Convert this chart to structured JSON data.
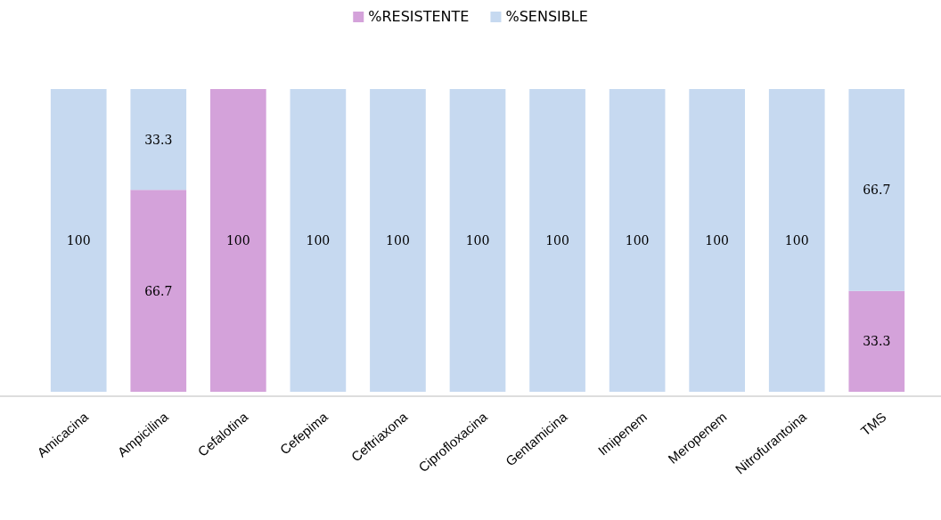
{
  "chart_data": {
    "type": "bar",
    "stacked": true,
    "legend": "top",
    "categories": [
      "Amicacina",
      "Ampicilina",
      "Cefalotina",
      "Cefepima",
      "Ceftriaxona",
      "Ciprofloxacina",
      "Gentamicina",
      "Imipenem",
      "Meropenem",
      "Nitrofurantoina",
      "TMS"
    ],
    "series": [
      {
        "name": "%RESISTENTE",
        "color": "#d4a2da",
        "values": [
          0,
          66.7,
          100,
          0,
          0,
          0,
          0,
          0,
          0,
          0,
          33.3
        ],
        "value_labels": [
          null,
          "66.7",
          "100",
          null,
          null,
          null,
          null,
          null,
          null,
          null,
          "33.3"
        ]
      },
      {
        "name": "%SENSIBLE",
        "color": "#c6d9f0",
        "values": [
          100,
          33.3,
          0,
          100,
          100,
          100,
          100,
          100,
          100,
          100,
          66.7
        ],
        "value_labels": [
          "100",
          "33.3",
          null,
          "100",
          "100",
          "100",
          "100",
          "100",
          "100",
          "100",
          "66.7"
        ]
      }
    ]
  }
}
